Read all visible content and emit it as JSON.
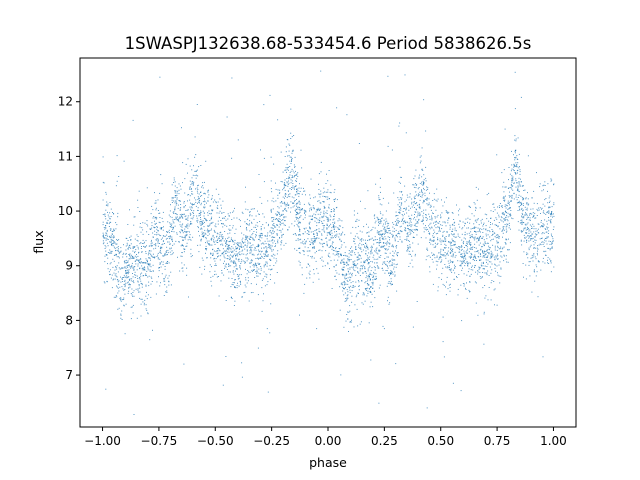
{
  "chart_data": {
    "type": "scatter",
    "title": "1SWASPJ132638.68-533454.6 Period 5838626.5s",
    "xlabel": "phase",
    "ylabel": "flux",
    "xlim": [
      -1.1,
      1.1
    ],
    "ylim": [
      6.05,
      12.8
    ],
    "x_ticks": [
      -1.0,
      -0.75,
      -0.5,
      -0.25,
      0.0,
      0.25,
      0.5,
      0.75,
      1.0
    ],
    "x_tick_labels": [
      "−1.00",
      "−0.75",
      "−0.50",
      "−0.25",
      "0.00",
      "0.25",
      "0.50",
      "0.75",
      "1.00"
    ],
    "y_ticks": [
      7,
      8,
      9,
      10,
      11,
      12
    ],
    "y_tick_labels": [
      "7",
      "8",
      "9",
      "10",
      "11",
      "12"
    ],
    "grid": false,
    "legend": "none",
    "marker_color": "#1f77b4",
    "series": [
      {
        "description_of_shape": "dense phase-folded light curve plotted twice over phase -1 to 1 (one cycle per unit of phase)",
        "phase_profile": [
          {
            "phase": 0.0,
            "flux": 9.8
          },
          {
            "phase": 0.05,
            "flux": 9.4
          },
          {
            "phase": 0.08,
            "flux": 8.6
          },
          {
            "phase": 0.12,
            "flux": 9.1
          },
          {
            "phase": 0.2,
            "flux": 9.0
          },
          {
            "phase": 0.23,
            "flux": 9.7
          },
          {
            "phase": 0.28,
            "flux": 9.0
          },
          {
            "phase": 0.32,
            "flux": 10.1
          },
          {
            "phase": 0.36,
            "flux": 9.6
          },
          {
            "phase": 0.41,
            "flux": 10.4
          },
          {
            "phase": 0.45,
            "flux": 9.7
          },
          {
            "phase": 0.5,
            "flux": 9.5
          },
          {
            "phase": 0.55,
            "flux": 9.3
          },
          {
            "phase": 0.6,
            "flux": 9.1
          },
          {
            "phase": 0.65,
            "flux": 9.4
          },
          {
            "phase": 0.7,
            "flux": 9.2
          },
          {
            "phase": 0.75,
            "flux": 9.5
          },
          {
            "phase": 0.8,
            "flux": 10.0
          },
          {
            "phase": 0.83,
            "flux": 10.8
          },
          {
            "phase": 0.87,
            "flux": 9.8
          },
          {
            "phase": 0.92,
            "flux": 9.5
          },
          {
            "phase": 0.96,
            "flux": 9.8
          },
          {
            "phase": 1.0,
            "flux": 9.8
          }
        ]
      }
    ]
  }
}
